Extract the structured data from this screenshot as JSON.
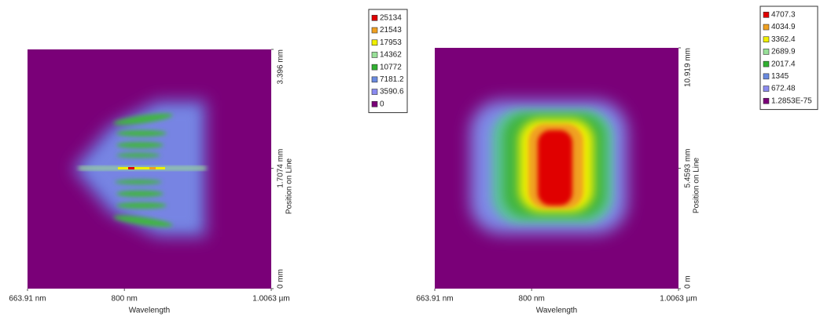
{
  "chart_data": [
    {
      "type": "heatmap",
      "x_label": "Wavelength",
      "y_label": "Position on Line",
      "xlim": [
        663.91,
        1006.3
      ],
      "xticks": [
        {
          "value": 663.91,
          "label": "663.91 nm"
        },
        {
          "value": 800,
          "label": "800 nm"
        },
        {
          "value": 1006.3,
          "label": "1.0063 µm"
        }
      ],
      "ylim": [
        0,
        3.396
      ],
      "yticks": [
        {
          "value": 0,
          "label": "0 mm"
        },
        {
          "value": 1.7074,
          "label": "1.7074 mm"
        },
        {
          "value": 3.396,
          "label": "3.396 mm"
        }
      ],
      "levels": [
        25134,
        21543,
        17953,
        14362,
        10772,
        7181.2,
        3590.6,
        0
      ],
      "level_colors": [
        "#e00000",
        "#f0a020",
        "#f0f000",
        "#98e098",
        "#30b030",
        "#6a8ae0",
        "#8a8af0",
        "#7a0078"
      ],
      "background": "#7a0078"
    },
    {
      "type": "heatmap",
      "x_label": "Wavelength",
      "y_label": "Position on Line",
      "xlim": [
        663.91,
        1006.3
      ],
      "xticks": [
        {
          "value": 663.91,
          "label": "663.91 nm"
        },
        {
          "value": 800,
          "label": "800 nm"
        },
        {
          "value": 1006.3,
          "label": "1.0063 µm"
        }
      ],
      "ylim": [
        0,
        10.919
      ],
      "yticks": [
        {
          "value": 0,
          "label": "0 m"
        },
        {
          "value": 5.4593,
          "label": "5.4593 mm"
        },
        {
          "value": 10.919,
          "label": "10.919 mm"
        }
      ],
      "levels": [
        4707.3,
        4034.9,
        3362.4,
        2689.9,
        2017.4,
        1345,
        672.48,
        {
          "value": 1.2853e-75,
          "label": "1.2853E-75"
        }
      ],
      "level_colors": [
        "#e00000",
        "#f0a020",
        "#f0f000",
        "#98e098",
        "#30b030",
        "#6a8ae0",
        "#8a8af0",
        "#7a0078"
      ],
      "background": "#7a0078"
    }
  ]
}
